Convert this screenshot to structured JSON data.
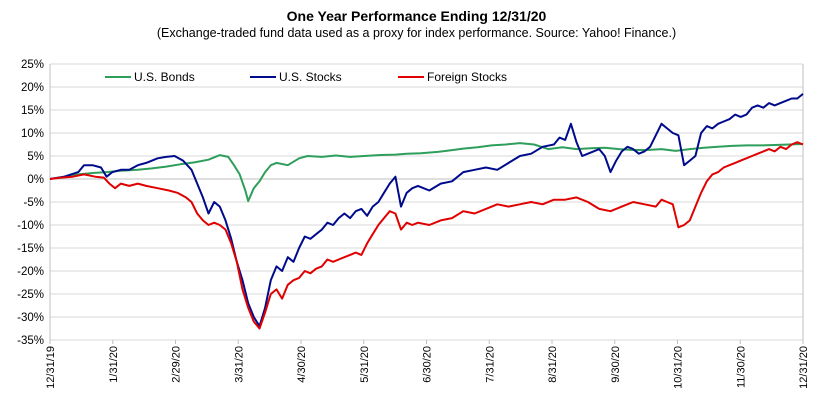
{
  "chart_data": {
    "type": "line",
    "title": "One Year Performance Ending 12/31/20",
    "subtitle": "(Exchange-traded fund data used as a proxy for index performance. Source: Yahoo! Finance.)",
    "xlabel": "",
    "ylabel": "",
    "y_tick_labels": [
      "25%",
      "20%",
      "15%",
      "10%",
      "5%",
      "0%",
      "-5%",
      "-10%",
      "-15%",
      "-20%",
      "-25%",
      "-30%",
      "-35%"
    ],
    "ylim": [
      -35,
      25
    ],
    "x_tick_labels": [
      "12/31/19",
      "1/31/20",
      "2/29/20",
      "3/31/20",
      "4/30/20",
      "5/31/20",
      "6/30/20",
      "7/31/20",
      "8/31/20",
      "9/30/20",
      "10/31/20",
      "11/30/20",
      "12/31/20"
    ],
    "grid": "horizontal",
    "legend_placement": "top-left",
    "series": [
      {
        "name": "U.S. Bonds",
        "color": "#2e9e5b",
        "points": [
          [
            0,
            0
          ],
          [
            5,
            0.5
          ],
          [
            10,
            1
          ],
          [
            15,
            1.3
          ],
          [
            20,
            1.5
          ],
          [
            25,
            1.8
          ],
          [
            31,
            2
          ],
          [
            36,
            2.3
          ],
          [
            41,
            2.7
          ],
          [
            46,
            3.2
          ],
          [
            51,
            3.6
          ],
          [
            56,
            4.2
          ],
          [
            60,
            5.2
          ],
          [
            63,
            4.8
          ],
          [
            65,
            3
          ],
          [
            67,
            1
          ],
          [
            69,
            -2.5
          ],
          [
            70,
            -4.8
          ],
          [
            72,
            -2
          ],
          [
            74,
            -0.5
          ],
          [
            76,
            1.5
          ],
          [
            78,
            3
          ],
          [
            80,
            3.5
          ],
          [
            84,
            3
          ],
          [
            88,
            4.5
          ],
          [
            91,
            5
          ],
          [
            96,
            4.8
          ],
          [
            101,
            5.1
          ],
          [
            106,
            4.8
          ],
          [
            111,
            5
          ],
          [
            116,
            5.2
          ],
          [
            122,
            5.3
          ],
          [
            126,
            5.5
          ],
          [
            131,
            5.6
          ],
          [
            137,
            5.9
          ],
          [
            141,
            6.2
          ],
          [
            146,
            6.6
          ],
          [
            151,
            6.9
          ],
          [
            156,
            7.3
          ],
          [
            161,
            7.5
          ],
          [
            166,
            7.8
          ],
          [
            171,
            7.5
          ],
          [
            176,
            6.5
          ],
          [
            181,
            6.9
          ],
          [
            186,
            6.5
          ],
          [
            191,
            6.7
          ],
          [
            196,
            6.8
          ],
          [
            201,
            6.5
          ],
          [
            206,
            6.3
          ],
          [
            211,
            6.3
          ],
          [
            216,
            6.5
          ],
          [
            221,
            6.1
          ],
          [
            226,
            6.5
          ],
          [
            231,
            6.8
          ],
          [
            236,
            7
          ],
          [
            241,
            7.2
          ],
          [
            246,
            7.3
          ],
          [
            251,
            7.3
          ],
          [
            256,
            7.4
          ],
          [
            261,
            7.5
          ],
          [
            266,
            7.6
          ]
        ]
      },
      {
        "name": "U.S. Stocks",
        "color": "#000b8c",
        "points": [
          [
            0,
            0
          ],
          [
            5,
            0.5
          ],
          [
            10,
            1.5
          ],
          [
            12,
            3
          ],
          [
            15,
            3
          ],
          [
            18,
            2.5
          ],
          [
            20,
            0.5
          ],
          [
            22,
            1.5
          ],
          [
            25,
            2
          ],
          [
            28,
            2
          ],
          [
            31,
            3
          ],
          [
            34,
            3.5
          ],
          [
            38,
            4.5
          ],
          [
            41,
            4.8
          ],
          [
            44,
            5
          ],
          [
            47,
            4
          ],
          [
            50,
            2
          ],
          [
            52,
            -1
          ],
          [
            54,
            -4
          ],
          [
            56,
            -7.5
          ],
          [
            58,
            -5
          ],
          [
            60,
            -6
          ],
          [
            62,
            -9
          ],
          [
            64,
            -13
          ],
          [
            66,
            -18
          ],
          [
            68,
            -22
          ],
          [
            70,
            -27
          ],
          [
            72,
            -30
          ],
          [
            74,
            -32
          ],
          [
            76,
            -28
          ],
          [
            78,
            -22
          ],
          [
            80,
            -19
          ],
          [
            82,
            -20
          ],
          [
            84,
            -17
          ],
          [
            86,
            -18
          ],
          [
            88,
            -15
          ],
          [
            90,
            -12.5
          ],
          [
            92,
            -13
          ],
          [
            94,
            -12
          ],
          [
            96,
            -11
          ],
          [
            98,
            -9.5
          ],
          [
            100,
            -10
          ],
          [
            102,
            -8.5
          ],
          [
            104,
            -7.5
          ],
          [
            106,
            -8.5
          ],
          [
            108,
            -7
          ],
          [
            110,
            -6.5
          ],
          [
            112,
            -8
          ],
          [
            114,
            -6
          ],
          [
            116,
            -5
          ],
          [
            118,
            -3
          ],
          [
            120,
            -1
          ],
          [
            122,
            0.5
          ],
          [
            124,
            -6
          ],
          [
            126,
            -3
          ],
          [
            128,
            -2
          ],
          [
            130,
            -1.5
          ],
          [
            134,
            -2.5
          ],
          [
            138,
            -1
          ],
          [
            142,
            -0.5
          ],
          [
            146,
            1.5
          ],
          [
            150,
            2
          ],
          [
            154,
            2.5
          ],
          [
            158,
            2
          ],
          [
            162,
            3.5
          ],
          [
            166,
            5
          ],
          [
            170,
            5.5
          ],
          [
            174,
            7
          ],
          [
            178,
            7.5
          ],
          [
            180,
            9
          ],
          [
            182,
            8.5
          ],
          [
            184,
            12
          ],
          [
            186,
            8
          ],
          [
            188,
            5
          ],
          [
            190,
            5.5
          ],
          [
            192,
            6
          ],
          [
            194,
            6.5
          ],
          [
            196,
            5
          ],
          [
            198,
            1.5
          ],
          [
            200,
            4
          ],
          [
            202,
            6
          ],
          [
            204,
            7
          ],
          [
            206,
            6.5
          ],
          [
            208,
            5.5
          ],
          [
            210,
            6
          ],
          [
            212,
            7
          ],
          [
            214,
            9.5
          ],
          [
            216,
            12
          ],
          [
            218,
            11
          ],
          [
            220,
            10
          ],
          [
            222,
            9.5
          ],
          [
            224,
            3
          ],
          [
            226,
            4
          ],
          [
            228,
            5
          ],
          [
            230,
            10
          ],
          [
            232,
            11.5
          ],
          [
            234,
            11
          ],
          [
            236,
            12
          ],
          [
            238,
            12.5
          ],
          [
            240,
            13
          ],
          [
            242,
            14
          ],
          [
            244,
            13.5
          ],
          [
            246,
            14
          ],
          [
            248,
            15.5
          ],
          [
            250,
            16
          ],
          [
            252,
            15.5
          ],
          [
            254,
            16.5
          ],
          [
            256,
            16
          ],
          [
            258,
            16.5
          ],
          [
            260,
            17
          ],
          [
            262,
            17.5
          ],
          [
            264,
            17.5
          ],
          [
            266,
            18.5
          ]
        ]
      },
      {
        "name": "Foreign Stocks",
        "color": "#e00000",
        "points": [
          [
            0,
            0
          ],
          [
            4,
            0.3
          ],
          [
            8,
            0.5
          ],
          [
            12,
            1
          ],
          [
            16,
            0.5
          ],
          [
            19,
            0.3
          ],
          [
            21,
            -1
          ],
          [
            23,
            -2
          ],
          [
            25,
            -1
          ],
          [
            28,
            -1.5
          ],
          [
            31,
            -1
          ],
          [
            34,
            -1.5
          ],
          [
            38,
            -2
          ],
          [
            42,
            -2.5
          ],
          [
            45,
            -3
          ],
          [
            48,
            -4
          ],
          [
            50,
            -5
          ],
          [
            52,
            -7.5
          ],
          [
            54,
            -9
          ],
          [
            56,
            -10
          ],
          [
            58,
            -9.5
          ],
          [
            60,
            -10
          ],
          [
            62,
            -11
          ],
          [
            64,
            -14
          ],
          [
            66,
            -18
          ],
          [
            68,
            -24
          ],
          [
            70,
            -28
          ],
          [
            72,
            -31
          ],
          [
            74,
            -32.5
          ],
          [
            76,
            -29
          ],
          [
            78,
            -25
          ],
          [
            80,
            -24
          ],
          [
            82,
            -26
          ],
          [
            84,
            -23
          ],
          [
            86,
            -22
          ],
          [
            88,
            -21.5
          ],
          [
            90,
            -20
          ],
          [
            92,
            -20.5
          ],
          [
            94,
            -19.5
          ],
          [
            96,
            -19
          ],
          [
            98,
            -17.5
          ],
          [
            100,
            -18
          ],
          [
            102,
            -17.5
          ],
          [
            104,
            -17
          ],
          [
            106,
            -16.5
          ],
          [
            108,
            -16
          ],
          [
            110,
            -16.5
          ],
          [
            112,
            -14
          ],
          [
            114,
            -12
          ],
          [
            116,
            -10
          ],
          [
            118,
            -8.5
          ],
          [
            120,
            -7
          ],
          [
            122,
            -7.5
          ],
          [
            124,
            -11
          ],
          [
            126,
            -9.5
          ],
          [
            128,
            -10
          ],
          [
            130,
            -9.5
          ],
          [
            134,
            -10
          ],
          [
            138,
            -9
          ],
          [
            142,
            -8.5
          ],
          [
            146,
            -7
          ],
          [
            150,
            -7.5
          ],
          [
            154,
            -6.5
          ],
          [
            158,
            -5.5
          ],
          [
            162,
            -6
          ],
          [
            166,
            -5.5
          ],
          [
            170,
            -5
          ],
          [
            174,
            -5.5
          ],
          [
            178,
            -4.5
          ],
          [
            182,
            -4.5
          ],
          [
            186,
            -4
          ],
          [
            190,
            -5
          ],
          [
            194,
            -6.5
          ],
          [
            198,
            -7
          ],
          [
            202,
            -6
          ],
          [
            206,
            -5
          ],
          [
            210,
            -5.5
          ],
          [
            214,
            -6
          ],
          [
            216,
            -4.5
          ],
          [
            218,
            -5
          ],
          [
            220,
            -5.5
          ],
          [
            222,
            -10.5
          ],
          [
            224,
            -10
          ],
          [
            226,
            -9
          ],
          [
            228,
            -6
          ],
          [
            230,
            -3
          ],
          [
            232,
            -0.5
          ],
          [
            234,
            1
          ],
          [
            236,
            1.5
          ],
          [
            238,
            2.5
          ],
          [
            240,
            3
          ],
          [
            242,
            3.5
          ],
          [
            244,
            4
          ],
          [
            246,
            4.5
          ],
          [
            248,
            5
          ],
          [
            250,
            5.5
          ],
          [
            252,
            6
          ],
          [
            254,
            6.5
          ],
          [
            256,
            6
          ],
          [
            258,
            7
          ],
          [
            260,
            6.5
          ],
          [
            262,
            7.5
          ],
          [
            264,
            8
          ],
          [
            266,
            7.5
          ]
        ]
      }
    ]
  }
}
